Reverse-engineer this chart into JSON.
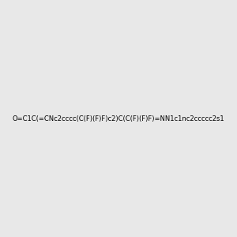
{
  "smiles": "O=C1C(=CNc2cccc(C(F)(F)F)c2)C(C(F)(F)F)=NN1c1nc2ccccc2s1",
  "title": "",
  "bg_color": "#e8e8e8",
  "fig_width": 3.0,
  "fig_height": 3.0,
  "dpi": 100
}
